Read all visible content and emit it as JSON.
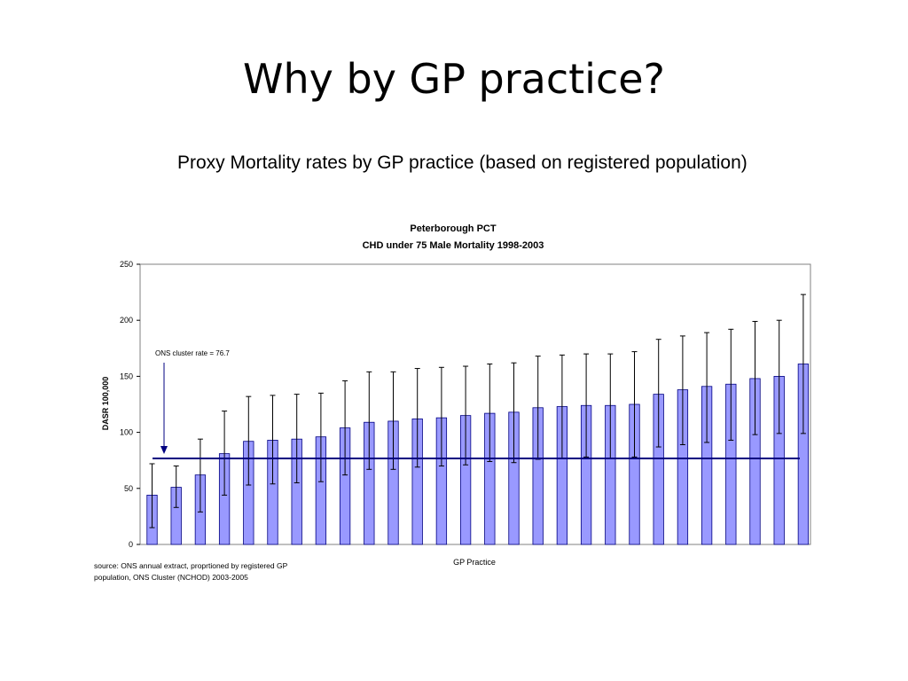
{
  "slide": {
    "title": "Why by GP practice?",
    "subtitle": "Proxy Mortality rates by GP practice (based on registered population)",
    "source_note": "source: ONS annual extract, proprtioned by registered GP population, ONS Cluster (NCHOD) 2003-2005"
  },
  "chart_data": {
    "type": "bar",
    "title": "Peterborough PCT",
    "subtitle": "CHD under 75 Male Mortality 1998-2003",
    "xlabel": "GP Practice",
    "ylabel": "DASR 100,000",
    "ylim": [
      0,
      250
    ],
    "yticks": [
      0,
      50,
      100,
      150,
      200,
      250
    ],
    "grid": false,
    "values": [
      44,
      51,
      62,
      81,
      92,
      93,
      94,
      96,
      104,
      109,
      110,
      112,
      113,
      115,
      117,
      118,
      122,
      123,
      124,
      124,
      125,
      134,
      138,
      141,
      143,
      148,
      150,
      161
    ],
    "error_low": [
      15,
      33,
      29,
      44,
      53,
      54,
      55,
      56,
      62,
      67,
      67,
      69,
      70,
      71,
      74,
      73,
      76,
      77,
      78,
      77,
      78,
      87,
      89,
      91,
      93,
      98,
      99,
      99
    ],
    "error_high": [
      72,
      70,
      94,
      119,
      132,
      133,
      134,
      135,
      146,
      154,
      154,
      157,
      158,
      159,
      161,
      162,
      168,
      169,
      170,
      170,
      172,
      183,
      186,
      189,
      192,
      199,
      200,
      223
    ],
    "reference_line": {
      "value": 76.7,
      "label": "ONS cluster rate = 76.7"
    },
    "colors": {
      "bar_fill": "#9999ff",
      "bar_stroke": "#000080",
      "reference_line": "#000080",
      "plot_border": "#808080"
    }
  }
}
